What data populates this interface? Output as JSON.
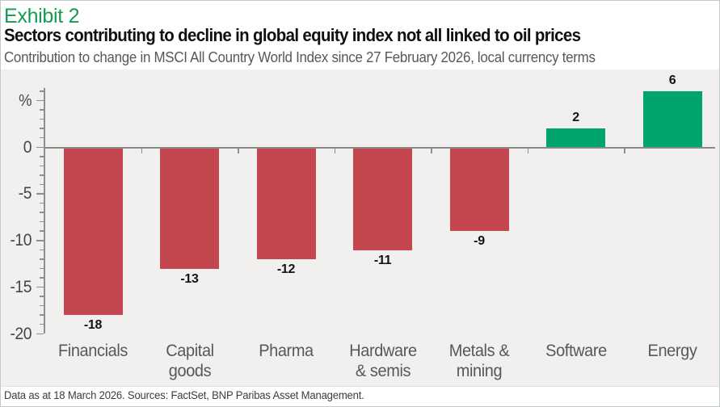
{
  "header": {
    "exhibit_label": "Exhibit 2",
    "title": "Sectors contributing to decline in global equity index not all linked to oil prices",
    "subtitle": "Contribution to change in MSCI All Country World Index since 27 February 2026, local currency terms"
  },
  "footer": {
    "source_note": "Data as at 18 March 2026.  Sources: FactSet, BNP Paribas Asset Management."
  },
  "colors": {
    "exhibit_green": "#149a52",
    "bar_negative_red": "#c4474f",
    "bar_positive_green": "#00a46e",
    "chart_background": "#f1f0ee",
    "axis_grey": "#8e8e8e",
    "label_grey": "#57585a"
  },
  "chart_data": {
    "type": "bar",
    "title": "Sectors contributing to decline in global equity index not all linked to oil prices",
    "subtitle": "Contribution to change in MSCI All Country World Index since 27 February 2026, local currency terms",
    "categories": [
      "Financials",
      "Capital goods",
      "Pharma",
      "Hardware & semis",
      "Metals & mining",
      "Software",
      "Energy"
    ],
    "category_label_lines": [
      [
        "Financials"
      ],
      [
        "Capital",
        "goods"
      ],
      [
        "Pharma"
      ],
      [
        "Hardware",
        "& semis"
      ],
      [
        "Metals &",
        "mining"
      ],
      [
        "Software"
      ],
      [
        "Energy"
      ]
    ],
    "values": [
      -18,
      -13,
      -12,
      -11,
      -9,
      2,
      6
    ],
    "bar_color_rule": {
      "negative": "#c4474f",
      "positive": "#00a46e"
    },
    "ylabel": "%",
    "xlabel": "",
    "y_ticks": [
      0,
      -5,
      -10,
      -15,
      -20
    ],
    "y_minor_tick_step": 1,
    "ylim": [
      -20.5,
      6.5
    ],
    "grid": false,
    "legend": false,
    "value_labels": "outside-bar-end",
    "source": "Data as at 18 March 2026.  Sources: FactSet, BNP Paribas Asset Management."
  }
}
